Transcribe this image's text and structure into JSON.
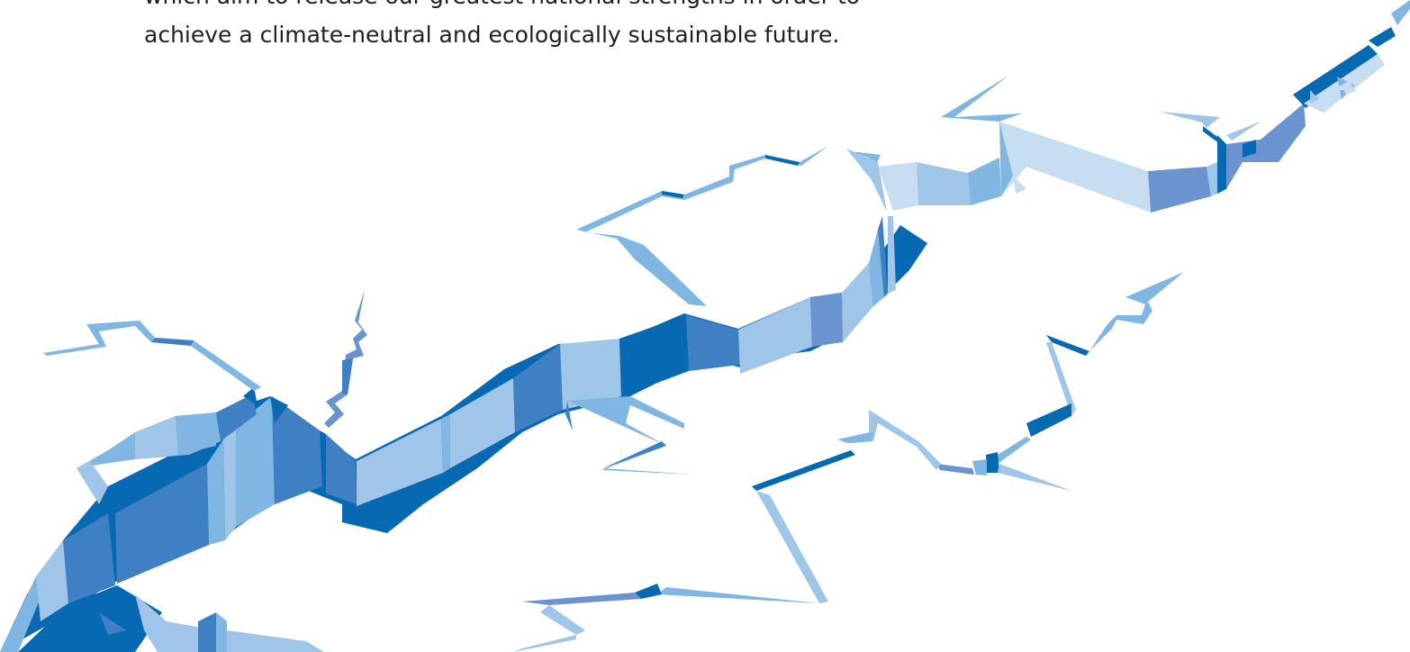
{
  "intro": {
    "line_1": "which aim to release our greatest national strengths in order to",
    "line_2": "achieve a climate-neutral and ecologically sustainable future."
  },
  "illustration": {
    "name": "ice-crack-illustration",
    "palette": {
      "dark": "#0869b3",
      "mid_dark": "#3f7fc3",
      "mid": "#6b93cf",
      "light": "#7fb6e2",
      "lighter": "#9fc5e8",
      "lightest": "#c6ddf2"
    }
  }
}
